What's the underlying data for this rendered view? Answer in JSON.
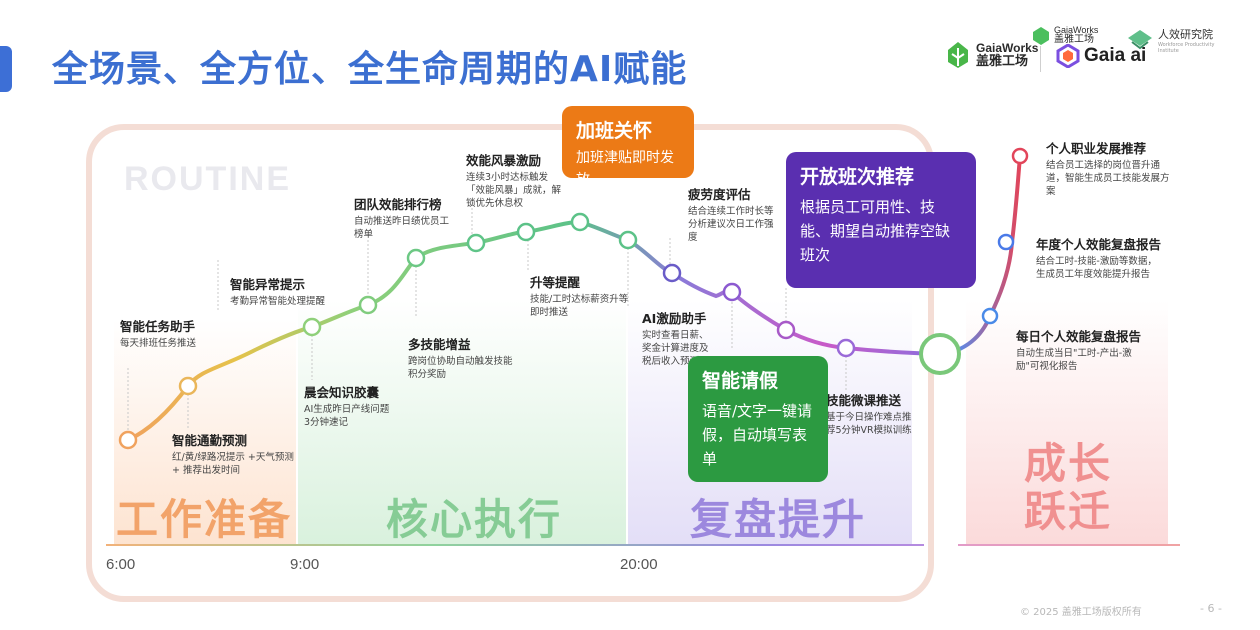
{
  "title": "全场景、全方位、全生命周期的AI赋能",
  "logos": {
    "gaiaworks_en": "GaiaWorks",
    "gaiaworks_cn": "盖雅工场",
    "small_en": "GaiaWorks",
    "small_cn": "盖雅工场",
    "gaia_ai": "Gaia ai",
    "institute_cn": "人效研究院",
    "institute_en": "Workforce Productivity Institute"
  },
  "watermark": "ROUTINE",
  "phases": {
    "prep": "工作准备",
    "core": "核心执行",
    "review": "复盘提升",
    "growth_line1": "成长",
    "growth_line2": "跃迁"
  },
  "times": [
    "6:00",
    "9:00",
    "20:00"
  ],
  "notes": {
    "task_assistant": {
      "title": "智能任务助手",
      "desc": "每天排班任务推送"
    },
    "commute": {
      "title": "智能通勤预测",
      "desc": "红/黄/绿路况提示 +天气预测 + 推荐出发时间"
    },
    "anomaly": {
      "title": "智能异常提示",
      "desc": "考勤异常智能处理提醒"
    },
    "morning": {
      "title": "晨会知识胶囊",
      "desc": "AI生成昨日产线问题 3分钟速记"
    },
    "ranking": {
      "title": "团队效能排行榜",
      "desc": "自动推送昨日绩优员工榜单"
    },
    "multiskill": {
      "title": "多技能增益",
      "desc": "跨岗位协助自动触发技能积分奖励"
    },
    "storm": {
      "title": "效能风暴激励",
      "desc": "连续3小时达标触发「效能风暴」成就，解锁优先休息权"
    },
    "promotion": {
      "title": "升等提醒",
      "desc": "技能/工时达标薪资升等即时推送"
    },
    "fatigue": {
      "title": "疲劳度评估",
      "desc": "结合连续工作时长等分析建议次日工作强度"
    },
    "ai_incentive": {
      "title": "AI激励助手",
      "desc": "实时查看日薪、奖金计算进度及税后收入预测"
    },
    "micro_course": {
      "title": "技能微课推送",
      "desc": "基于今日操作难点推荐5分钟VR模拟训练"
    },
    "career": {
      "title": "个人职业发展推荐",
      "desc": "结合员工选择的岗位晋升通道，智能生成员工技能发展方案"
    },
    "annual": {
      "title": "年度个人效能复盘报告",
      "desc": "结合工时-技能-激励等数据，生成员工年度效能提升报告"
    },
    "daily": {
      "title": "每日个人效能复盘报告",
      "desc": "自动生成当日\"工时-产出-激励\"可视化报告"
    }
  },
  "callouts": {
    "overtime": {
      "title": "加班关怀",
      "desc": "加班津贴即时发放",
      "color": "#ec7a16"
    },
    "open_shift": {
      "title": "开放班次推荐",
      "desc": "根据员工可用性、技能、期望自动推荐空缺班次",
      "color": "#5a2fb0"
    },
    "leave": {
      "title": "智能请假",
      "desc": "语音/文字一键请假，自动填写表单",
      "color": "#2c9a41"
    }
  },
  "footer": {
    "copyright": "© 2025 盖雅工场版权所有",
    "page": "- 6 -"
  },
  "colors": {
    "title": "#3c6fd1",
    "prep": "#f2a36a",
    "core": "#8bd09a",
    "review": "#9e8be0",
    "growth": "#f09a9a"
  }
}
